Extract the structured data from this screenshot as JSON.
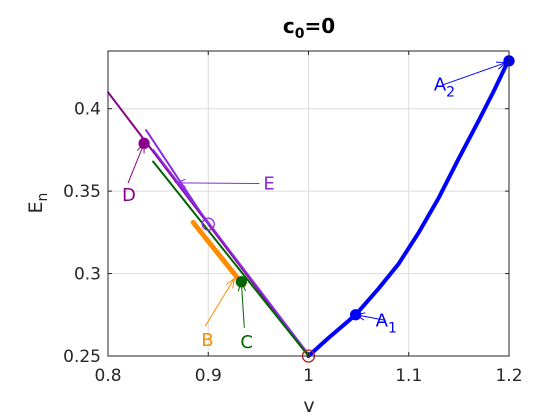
{
  "chart_data": {
    "type": "line",
    "title": "c0=0",
    "title_base": "c",
    "title_sub": "0",
    "title_rest": "=0",
    "xlabel": "v",
    "ylabel_base": "E",
    "ylabel_sub": "n",
    "xlim": [
      0.8,
      1.2
    ],
    "ylim": [
      0.25,
      0.435
    ],
    "xticks": [
      0.8,
      0.9,
      1,
      1.1,
      1.2
    ],
    "xtick_labels": [
      "0.8",
      "0.9",
      "1",
      "1.1",
      "1.2"
    ],
    "yticks": [
      0.25,
      0.3,
      0.35,
      0.4
    ],
    "ytick_labels": [
      "0.25",
      "0.3",
      "0.35",
      "0.4"
    ],
    "grid": true,
    "series": [
      {
        "color": "#0000ff",
        "width": 4,
        "points": [
          [
            1.0,
            0.25
          ],
          [
            1.02,
            0.261
          ],
          [
            1.047,
            0.275
          ],
          [
            1.07,
            0.291
          ],
          [
            1.09,
            0.306
          ],
          [
            1.11,
            0.325
          ],
          [
            1.13,
            0.346
          ],
          [
            1.15,
            0.37
          ],
          [
            1.17,
            0.393
          ],
          [
            1.185,
            0.411
          ],
          [
            1.2,
            0.43
          ]
        ]
      },
      {
        "color": "#8b008b",
        "width": 2,
        "points": [
          [
            0.8,
            0.41
          ],
          [
            1.0,
            0.25
          ]
        ]
      },
      {
        "color": "#8a2be2",
        "width": 2,
        "points": [
          [
            0.838,
            0.387
          ],
          [
            0.9,
            0.33
          ]
        ]
      },
      {
        "color": "#8a2be2",
        "width": 2,
        "points": [
          [
            0.845,
            0.375
          ],
          [
            1.0,
            0.251
          ]
        ]
      },
      {
        "color": "#006400",
        "width": 2,
        "points": [
          [
            0.845,
            0.368
          ],
          [
            1.0,
            0.25
          ]
        ]
      },
      {
        "color": "#ff8c00",
        "width": 5,
        "points": [
          [
            0.885,
            0.331
          ],
          [
            0.935,
            0.293
          ]
        ]
      }
    ],
    "markers": [
      {
        "x": 1.2,
        "y": 0.429,
        "color": "#0000ff",
        "filled": true
      },
      {
        "x": 1.047,
        "y": 0.275,
        "color": "#0000ff",
        "filled": true
      },
      {
        "x": 0.836,
        "y": 0.379,
        "color": "#8b008b",
        "filled": true
      },
      {
        "x": 0.933,
        "y": 0.295,
        "color": "#006400",
        "filled": true
      },
      {
        "x": 0.9,
        "y": 0.33,
        "color": "#8a2be2",
        "filled": false
      },
      {
        "x": 1.0,
        "y": 0.25,
        "color": "#b22222",
        "filled": false
      }
    ],
    "annotations": [
      {
        "base": "A",
        "sub": "2",
        "color": "#0000ff",
        "lx": 1.125,
        "ly": 0.411,
        "ax": 1.197,
        "ay": 0.428
      },
      {
        "base": "A",
        "sub": "1",
        "color": "#0000ff",
        "lx": 1.067,
        "ly": 0.268,
        "ax": 1.047,
        "ay": 0.275
      },
      {
        "base": "E",
        "sub": "",
        "color": "#8a2be2",
        "lx": 0.955,
        "ly": 0.351,
        "ax": 0.868,
        "ay": 0.355
      },
      {
        "base": "D",
        "sub": "",
        "color": "#8b008b",
        "lx": 0.814,
        "ly": 0.344,
        "ax": 0.836,
        "ay": 0.379
      },
      {
        "base": "B",
        "sub": "",
        "color": "#ff8c00",
        "lx": 0.893,
        "ly": 0.256,
        "ax": 0.926,
        "ay": 0.297
      },
      {
        "base": "C",
        "sub": "",
        "color": "#006400",
        "lx": 0.932,
        "ly": 0.255,
        "ax": 0.933,
        "ay": 0.295
      }
    ]
  }
}
